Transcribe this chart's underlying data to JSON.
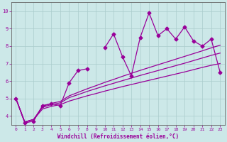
{
  "xlabel": "Windchill (Refroidissement éolien,°C)",
  "background_color": "#cce8e8",
  "grid_color": "#aacccc",
  "line_color": "#990099",
  "spine_color": "#666666",
  "xlim": [
    -0.5,
    23.5
  ],
  "ylim": [
    3.5,
    10.5
  ],
  "xticks": [
    0,
    1,
    2,
    3,
    4,
    5,
    6,
    7,
    8,
    9,
    10,
    11,
    12,
    13,
    14,
    15,
    16,
    17,
    18,
    19,
    20,
    21,
    22,
    23
  ],
  "yticks": [
    4,
    5,
    6,
    7,
    8,
    9,
    10
  ],
  "series_main": {
    "x": [
      0,
      1,
      2,
      3,
      4,
      5,
      6,
      7,
      8,
      9,
      10,
      11,
      12,
      13,
      14,
      15,
      16,
      17,
      18,
      19,
      20,
      21,
      22,
      23
    ],
    "y": [
      5.0,
      3.6,
      3.7,
      4.6,
      4.7,
      4.6,
      5.9,
      6.6,
      6.7,
      null,
      7.9,
      8.7,
      7.4,
      6.3,
      8.5,
      9.9,
      8.6,
      9.0,
      8.4,
      9.1,
      8.3,
      8.0,
      8.4,
      6.5
    ],
    "marker": "D",
    "markersize": 2.5,
    "linewidth": 0.9
  },
  "smooth_lines": [
    {
      "x": [
        0,
        1,
        2,
        3,
        4,
        5,
        6,
        7,
        8,
        9,
        10,
        11,
        12,
        13,
        14,
        15,
        16,
        17,
        18,
        19,
        20,
        21,
        22,
        23
      ],
      "y": [
        5.0,
        3.65,
        3.8,
        4.4,
        4.55,
        4.65,
        4.85,
        5.0,
        5.15,
        5.28,
        5.42,
        5.55,
        5.68,
        5.8,
        5.92,
        6.04,
        6.16,
        6.28,
        6.4,
        6.52,
        6.65,
        6.78,
        6.9,
        7.0
      ],
      "linewidth": 0.9
    },
    {
      "x": [
        0,
        1,
        2,
        3,
        4,
        5,
        6,
        7,
        8,
        9,
        10,
        11,
        12,
        13,
        14,
        15,
        16,
        17,
        18,
        19,
        20,
        21,
        22,
        23
      ],
      "y": [
        5.0,
        3.65,
        3.8,
        4.5,
        4.65,
        4.75,
        5.05,
        5.22,
        5.4,
        5.56,
        5.72,
        5.87,
        6.02,
        6.17,
        6.32,
        6.46,
        6.6,
        6.74,
        6.88,
        7.02,
        7.17,
        7.32,
        7.47,
        7.6
      ],
      "linewidth": 0.9
    },
    {
      "x": [
        0,
        1,
        2,
        3,
        4,
        5,
        6,
        7,
        8,
        9,
        10,
        11,
        12,
        13,
        14,
        15,
        16,
        17,
        18,
        19,
        20,
        21,
        22,
        23
      ],
      "y": [
        5.0,
        3.65,
        3.8,
        4.55,
        4.72,
        4.83,
        5.15,
        5.35,
        5.55,
        5.73,
        5.92,
        6.09,
        6.27,
        6.44,
        6.61,
        6.77,
        6.93,
        7.09,
        7.25,
        7.41,
        7.57,
        7.73,
        7.9,
        8.05
      ],
      "linewidth": 0.9
    }
  ]
}
